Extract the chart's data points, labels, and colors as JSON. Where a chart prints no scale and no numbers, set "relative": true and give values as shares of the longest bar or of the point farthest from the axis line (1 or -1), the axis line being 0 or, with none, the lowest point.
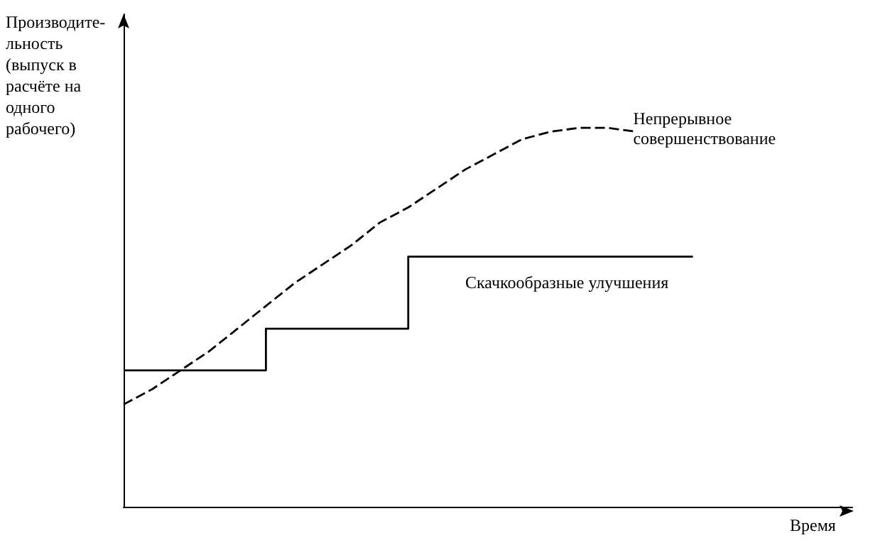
{
  "chart_data": {
    "type": "line",
    "relative": true,
    "xlabel": "Время",
    "ylabel": "Производите-\nльность\n(выпуск в\nрасчёте на\nодного\nрабочего)",
    "marker": "none",
    "grid": false,
    "legend": false,
    "categories": [
      null,
      null,
      null,
      null,
      null,
      null,
      null,
      null,
      null,
      null,
      null,
      null,
      null,
      null,
      null,
      null,
      null,
      null,
      null,
      null,
      null
    ],
    "series": [
      {
        "name": "Непрерывное совершенствование",
        "type": "line",
        "line_style": "dashed",
        "color": "#000000",
        "values": [
          0.27,
          0.31,
          0.36,
          0.41,
          0.47,
          0.53,
          0.59,
          0.64,
          0.69,
          0.75,
          0.79,
          0.84,
          0.89,
          0.93,
          0.97,
          0.99,
          1.0,
          1.0,
          0.99,
          null,
          null
        ]
      },
      {
        "name": "Скачкообразные улучшения",
        "type": "step",
        "line_style": "solid",
        "color": "#000000",
        "values": [
          0.36,
          0.36,
          0.36,
          0.36,
          0.36,
          0.47,
          0.47,
          0.47,
          0.47,
          0.47,
          0.66,
          0.66,
          0.66,
          0.66,
          0.66,
          0.66,
          0.66,
          0.66,
          0.66,
          0.66,
          0.66
        ]
      }
    ]
  }
}
